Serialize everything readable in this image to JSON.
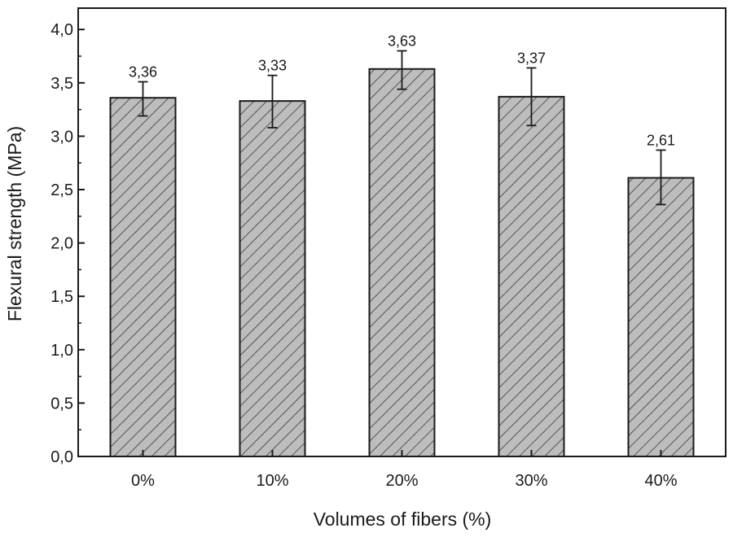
{
  "chart_data": {
    "type": "bar",
    "title": "",
    "xlabel": "Volumes of fibers (%)",
    "ylabel": "Flexural strength (MPa)",
    "categories": [
      "0%",
      "10%",
      "20%",
      "30%",
      "40%"
    ],
    "values": [
      3.36,
      3.33,
      3.63,
      3.37,
      2.61
    ],
    "value_labels": [
      "3,36",
      "3,33",
      "3,63",
      "3,37",
      "2,61"
    ],
    "error_low": [
      3.19,
      3.08,
      3.44,
      3.1,
      2.36
    ],
    "error_high": [
      3.51,
      3.57,
      3.8,
      3.64,
      2.87
    ],
    "ylim": [
      0,
      4.2
    ],
    "yticks": [
      0,
      0.5,
      1.0,
      1.5,
      2.0,
      2.5,
      3.0,
      3.5,
      4.0
    ],
    "ytick_labels": [
      "0,0",
      "0,5",
      "1,0",
      "1,5",
      "2,0",
      "2,5",
      "3,0",
      "3,5",
      "4,0"
    ],
    "grid": false,
    "legend": "none",
    "bar_fill": "#bdbdbd",
    "bar_pattern": "diagonal-hatch",
    "hatch_color": "#3a3a3a",
    "bar_edge": "#1a1a1a",
    "axis_color": "#1a1a1a"
  }
}
